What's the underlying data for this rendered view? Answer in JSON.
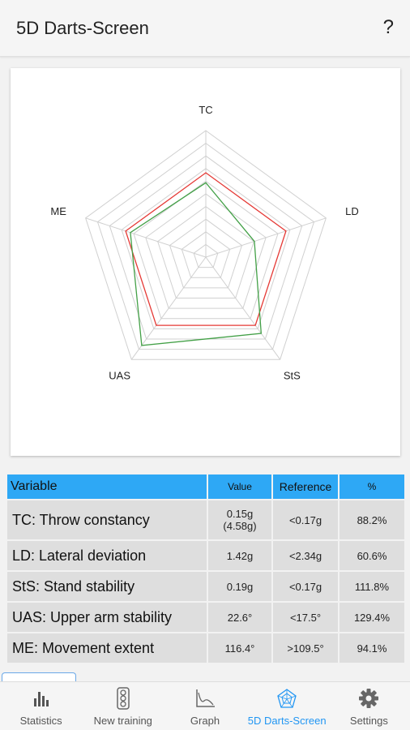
{
  "appbar": {
    "title": "5D Darts-Screen",
    "help_label": "?"
  },
  "radar": {
    "axes": [
      "TC",
      "LD",
      "StS",
      "UAS",
      "ME"
    ],
    "reference_color": "#e53935",
    "measured_color": "#43a047",
    "grid_color": "#d0d0d0",
    "max": 150,
    "reference_values": [
      100,
      100,
      100,
      100,
      100
    ],
    "measured_values": [
      88.2,
      60.6,
      111.8,
      129.4,
      94.1
    ]
  },
  "table": {
    "headers": {
      "variable": "Variable",
      "value": "Value",
      "reference": "Reference",
      "percent": "%"
    },
    "rows": [
      {
        "name": "TC: Throw constancy",
        "value": "0.15g",
        "value2": "(4.58g)",
        "reference": "<0.17g",
        "percent": "88.2%"
      },
      {
        "name": "LD: Lateral deviation",
        "value": "1.42g",
        "reference": "<2.34g",
        "percent": "60.6%"
      },
      {
        "name": "StS: Stand stability",
        "value": "0.19g",
        "reference": "<0.17g",
        "percent": "111.8%"
      },
      {
        "name": "UAS: Upper arm stability",
        "value": "22.6°",
        "reference": "<17.5°",
        "percent": "129.4%"
      },
      {
        "name": "ME: Movement extent",
        "value": "116.4°",
        "reference": ">109.5°",
        "percent": "94.1%"
      }
    ]
  },
  "nav": {
    "active_color": "#2196f3",
    "items": [
      {
        "label": "Statistics",
        "icon": "bar-chart-icon"
      },
      {
        "label": "New training",
        "icon": "traffic-light-icon"
      },
      {
        "label": "Graph",
        "icon": "line-graph-icon"
      },
      {
        "label": "5D Darts-Screen",
        "icon": "pentagon-icon"
      },
      {
        "label": "Settings",
        "icon": "gear-icon"
      }
    ]
  }
}
